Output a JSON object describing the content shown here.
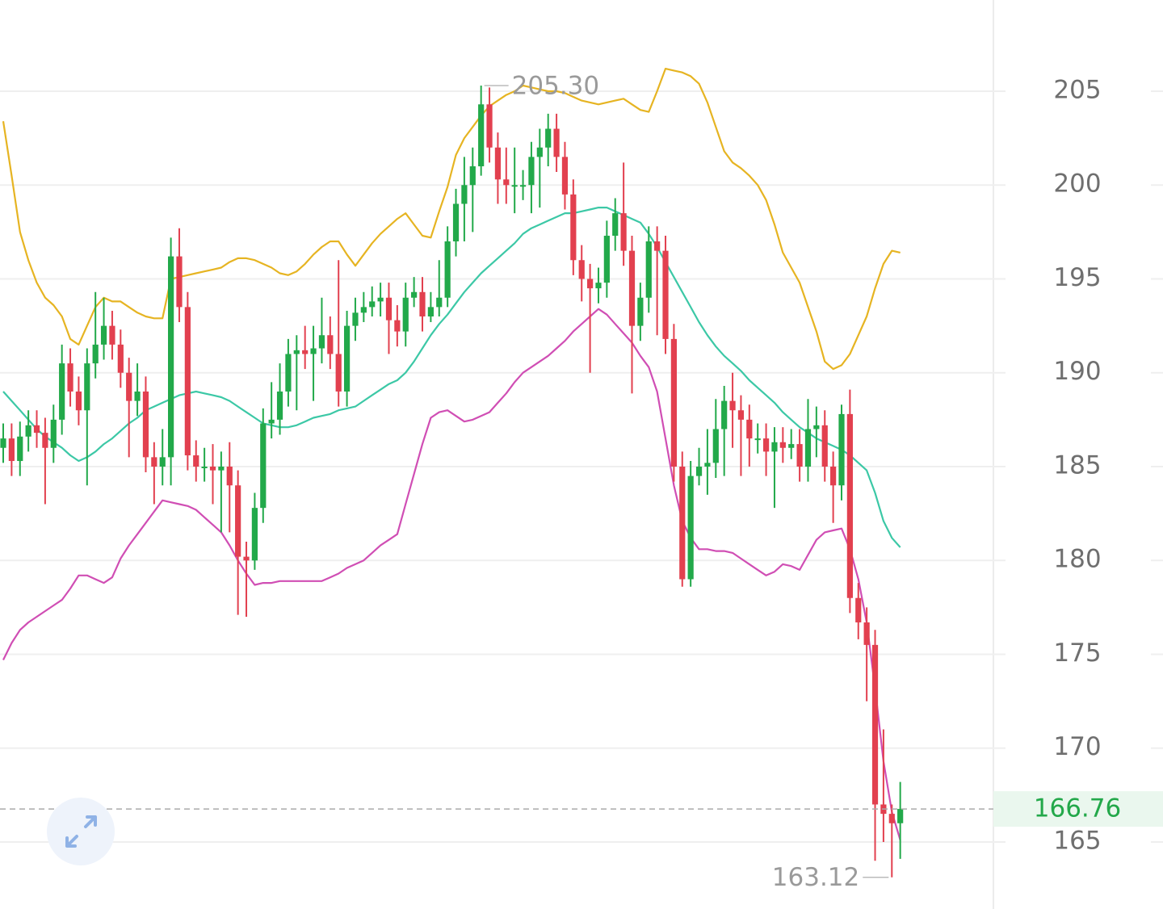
{
  "chart_data": {
    "type": "candlestick",
    "ylim": [
      161.43,
      209.86
    ],
    "yticks": [
      165,
      170,
      175,
      180,
      185,
      190,
      195,
      200,
      205
    ],
    "grid": true,
    "up_color": "#22a94a",
    "down_color": "#e2404f",
    "open": [
      186.0,
      186.5,
      185.3,
      186.6,
      187.2,
      186.8,
      186.0,
      187.5,
      190.5,
      189.0,
      188.0,
      190.5,
      191.5,
      192.5,
      191.5,
      190.0,
      188.5,
      189.0,
      185.5,
      185.0,
      185.5,
      196.2,
      193.5,
      185.6,
      185.0,
      185.0,
      184.8,
      185.0,
      184.0,
      180.2,
      180.0,
      182.8,
      187.3,
      187.5,
      189.0,
      191.0,
      191.2,
      191.0,
      191.3,
      192.0,
      191.0,
      189.0,
      192.5,
      193.2,
      193.5,
      193.8,
      194.0,
      192.8,
      192.2,
      194.0,
      194.3,
      193.0,
      193.5,
      194.0,
      197.0,
      199.0,
      200.0,
      201.0,
      204.3,
      202.0,
      200.3,
      200.0,
      200.0,
      200.0,
      201.5,
      202.0,
      203.0,
      201.5,
      199.5,
      196.0,
      195.0,
      194.5,
      194.8,
      197.3,
      198.5,
      196.5,
      192.5,
      194.0,
      197.0,
      196.5,
      191.8,
      185.0,
      179.0,
      184.5,
      185.0,
      185.2,
      187.0,
      188.5,
      188.0,
      187.5,
      186.5,
      186.5,
      185.8,
      186.3,
      186.0,
      186.2,
      185.0,
      187.0,
      187.2,
      185.0,
      184.0,
      187.8,
      178.0,
      176.7,
      175.5,
      167.0,
      166.5,
      166.0
    ],
    "high": [
      187.3,
      187.3,
      187.4,
      188.0,
      188.0,
      187.6,
      188.3,
      191.5,
      191.3,
      189.8,
      191.3,
      194.3,
      194.0,
      193.3,
      192.3,
      190.8,
      190.5,
      189.8,
      186.3,
      187.0,
      197.2,
      197.7,
      194.3,
      186.4,
      186.0,
      186.2,
      185.8,
      186.3,
      184.8,
      181.0,
      183.6,
      188.1,
      189.5,
      190.5,
      191.8,
      192.0,
      192.5,
      192.5,
      194.0,
      193.0,
      196.0,
      193.3,
      194.0,
      194.3,
      194.6,
      194.8,
      194.8,
      193.6,
      194.8,
      195.1,
      195.1,
      194.3,
      196.0,
      197.8,
      199.8,
      201.5,
      202.0,
      205.3,
      205.2,
      202.8,
      202.0,
      202.0,
      200.8,
      202.3,
      203.0,
      203.8,
      203.8,
      202.3,
      200.3,
      196.8,
      195.8,
      195.6,
      198.1,
      199.3,
      201.2,
      197.3,
      194.8,
      197.8,
      197.8,
      197.3,
      192.6,
      185.8,
      185.3,
      186.0,
      187.0,
      188.6,
      189.3,
      190.0,
      188.8,
      188.3,
      187.3,
      187.3,
      187.1,
      187.1,
      187.0,
      187.0,
      188.6,
      188.2,
      188.0,
      185.8,
      188.3,
      189.1,
      178.8,
      177.5,
      176.3,
      171.0,
      167.0,
      168.2
    ],
    "low": [
      185.2,
      184.5,
      184.5,
      185.8,
      186.0,
      183.0,
      185.2,
      186.7,
      188.2,
      187.2,
      184.0,
      189.7,
      190.7,
      190.7,
      189.2,
      185.5,
      187.7,
      184.7,
      183.0,
      184.0,
      184.0,
      192.7,
      184.8,
      184.2,
      184.2,
      183.0,
      181.5,
      181.5,
      177.1,
      177.0,
      179.5,
      182.0,
      186.5,
      186.7,
      188.2,
      188.0,
      190.2,
      188.5,
      190.5,
      190.2,
      188.2,
      188.2,
      191.7,
      192.7,
      193.0,
      193.0,
      191.0,
      191.4,
      191.4,
      193.5,
      192.2,
      192.7,
      193.0,
      193.5,
      196.2,
      197.0,
      197.5,
      200.5,
      201.2,
      199.0,
      199.0,
      198.5,
      199.2,
      198.5,
      198.8,
      201.0,
      200.7,
      198.7,
      195.2,
      193.8,
      190.0,
      193.7,
      194.0,
      196.5,
      195.7,
      188.9,
      191.7,
      193.2,
      192.0,
      191.0,
      184.2,
      178.6,
      178.6,
      184.0,
      183.5,
      184.4,
      184.5,
      186.0,
      184.5,
      185.0,
      185.7,
      184.5,
      182.8,
      185.2,
      185.4,
      184.2,
      184.2,
      185.5,
      184.2,
      182.0,
      183.2,
      177.2,
      175.8,
      172.5,
      164.0,
      165.0,
      163.12,
      164.1
    ],
    "close": [
      186.5,
      185.3,
      186.6,
      187.2,
      186.8,
      186.0,
      187.5,
      190.5,
      189.0,
      188.0,
      190.5,
      191.5,
      192.5,
      191.5,
      190.0,
      188.5,
      189.0,
      185.5,
      185.0,
      185.5,
      196.2,
      193.5,
      185.6,
      185.0,
      185.0,
      184.8,
      185.0,
      184.0,
      180.2,
      180.0,
      182.8,
      187.3,
      187.5,
      189.0,
      191.0,
      191.2,
      191.0,
      191.3,
      192.0,
      191.0,
      189.0,
      192.5,
      193.2,
      193.5,
      193.8,
      194.0,
      192.8,
      192.2,
      194.0,
      194.3,
      193.0,
      193.5,
      194.0,
      197.0,
      199.0,
      200.0,
      201.0,
      204.3,
      202.0,
      200.3,
      200.0,
      200.0,
      200.0,
      201.5,
      202.0,
      203.0,
      201.5,
      199.5,
      196.0,
      195.0,
      194.5,
      194.8,
      197.3,
      198.5,
      196.5,
      192.5,
      194.0,
      197.0,
      196.5,
      191.8,
      185.0,
      179.0,
      184.5,
      185.0,
      185.2,
      187.0,
      188.5,
      188.0,
      187.5,
      186.5,
      186.5,
      185.8,
      186.3,
      186.0,
      186.2,
      185.0,
      187.0,
      187.2,
      185.0,
      184.0,
      187.8,
      178.0,
      176.7,
      175.5,
      167.0,
      166.5,
      166.0,
      166.76
    ],
    "bands": [
      {
        "color": "#e6b422",
        "values": [
          203.4,
          200.5,
          197.5,
          196.0,
          194.8,
          194.0,
          193.6,
          193.0,
          191.8,
          191.5,
          192.5,
          193.5,
          194.0,
          193.8,
          193.8,
          193.5,
          193.2,
          193.0,
          192.9,
          192.9,
          195.0,
          195.1,
          195.2,
          195.3,
          195.4,
          195.5,
          195.6,
          195.9,
          196.1,
          196.1,
          196.0,
          195.8,
          195.6,
          195.3,
          195.2,
          195.4,
          195.8,
          196.3,
          196.7,
          197.0,
          197.0,
          196.3,
          195.7,
          196.3,
          196.9,
          197.4,
          197.8,
          198.2,
          198.5,
          197.9,
          197.3,
          197.2,
          198.6,
          199.9,
          201.6,
          202.5,
          203.1,
          203.7,
          204.2,
          204.5,
          204.8,
          205.0,
          205.3,
          205.2,
          205.1,
          205.0,
          205.0,
          204.9,
          204.7,
          204.5,
          204.4,
          204.3,
          204.4,
          204.5,
          204.6,
          204.3,
          204.0,
          203.9,
          205.0,
          206.2,
          206.1,
          206.0,
          205.8,
          205.4,
          204.4,
          203.1,
          201.8,
          201.2,
          200.9,
          200.5,
          200.0,
          199.2,
          197.9,
          196.4,
          195.6,
          194.8,
          193.5,
          192.2,
          190.6,
          190.2,
          190.4,
          191.0,
          192.0,
          193.0,
          194.5,
          195.8,
          196.5,
          196.4
        ]
      },
      {
        "color": "#3cc8a6",
        "values": [
          189.0,
          188.5,
          188.0,
          187.5,
          187.0,
          186.6,
          186.3,
          186.0,
          185.6,
          185.3,
          185.5,
          185.8,
          186.2,
          186.5,
          186.9,
          187.3,
          187.6,
          188.0,
          188.2,
          188.4,
          188.6,
          188.8,
          188.9,
          189.0,
          188.9,
          188.8,
          188.7,
          188.5,
          188.2,
          187.9,
          187.6,
          187.3,
          187.2,
          187.1,
          187.1,
          187.2,
          187.4,
          187.6,
          187.7,
          187.8,
          188.0,
          188.1,
          188.2,
          188.5,
          188.8,
          189.1,
          189.4,
          189.6,
          190.0,
          190.6,
          191.3,
          192.0,
          192.6,
          193.1,
          193.7,
          194.3,
          194.8,
          195.3,
          195.7,
          196.1,
          196.5,
          196.9,
          197.4,
          197.7,
          197.9,
          198.1,
          198.3,
          198.5,
          198.5,
          198.6,
          198.7,
          198.8,
          198.8,
          198.6,
          198.4,
          198.2,
          198.0,
          197.4,
          196.7,
          195.9,
          195.1,
          194.3,
          193.5,
          192.7,
          192.0,
          191.4,
          190.9,
          190.5,
          190.1,
          189.6,
          189.2,
          188.8,
          188.4,
          187.9,
          187.5,
          187.1,
          186.8,
          186.5,
          186.3,
          186.1,
          185.9,
          185.6,
          185.2,
          184.8,
          183.6,
          182.1,
          181.2,
          180.7
        ]
      },
      {
        "color": "#d04eb4",
        "values": [
          174.7,
          175.6,
          176.3,
          176.7,
          177.0,
          177.3,
          177.6,
          177.9,
          178.5,
          179.2,
          179.2,
          179.0,
          178.8,
          179.1,
          180.1,
          180.8,
          181.4,
          182.0,
          182.6,
          183.2,
          183.1,
          183.0,
          182.9,
          182.7,
          182.3,
          181.9,
          181.5,
          180.8,
          180.0,
          179.3,
          178.7,
          178.8,
          178.8,
          178.9,
          178.9,
          178.9,
          178.9,
          178.9,
          178.9,
          179.1,
          179.3,
          179.6,
          179.8,
          180.0,
          180.4,
          180.8,
          181.1,
          181.4,
          183.0,
          184.6,
          186.2,
          187.6,
          187.9,
          188.0,
          187.7,
          187.4,
          187.5,
          187.7,
          187.9,
          188.4,
          188.9,
          189.5,
          190.0,
          190.3,
          190.6,
          190.9,
          191.3,
          191.7,
          192.2,
          192.6,
          193.0,
          193.4,
          193.1,
          192.6,
          192.1,
          191.6,
          190.9,
          190.3,
          189.0,
          186.5,
          184.0,
          182.1,
          181.2,
          180.6,
          180.6,
          180.5,
          180.5,
          180.4,
          180.1,
          179.8,
          179.5,
          179.2,
          179.4,
          179.8,
          179.7,
          179.5,
          180.3,
          181.1,
          181.5,
          181.6,
          181.7,
          180.6,
          179.0,
          176.7,
          173.2,
          169.3,
          166.6,
          165.1
        ]
      }
    ],
    "high_label": "205.30",
    "low_label": "163.12",
    "last_label": "166.76"
  }
}
